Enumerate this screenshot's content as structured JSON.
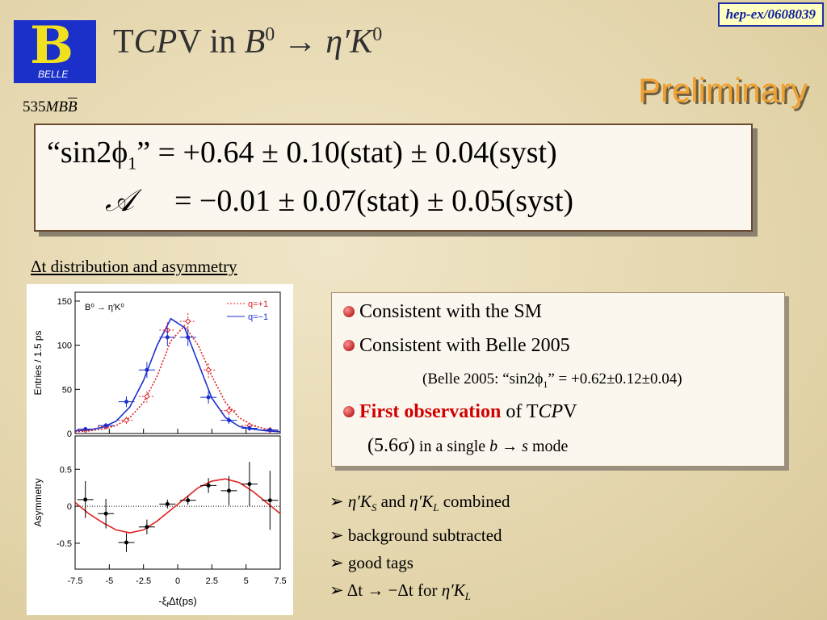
{
  "header": {
    "ref": "hep-ex/0608039",
    "logo_text": "BELLE",
    "title": [
      "T",
      "CP",
      "V in ",
      "B",
      "0",
      " → ",
      "η′",
      "K",
      "0"
    ],
    "luminosity": [
      "535",
      "MB",
      "B"
    ],
    "preliminary": "Preliminary"
  },
  "results": {
    "line1": [
      "“sin2",
      "ϕ",
      "1",
      "” = +0.64 ± 0.10(stat) ± 0.04(syst)"
    ],
    "line2": [
      "𝒜",
      "= −0.01 ± 0.07(stat) ± 0.05(syst)"
    ]
  },
  "section_label": "Δt distribution and asymmetry",
  "chart_data": [
    {
      "type": "errorbar",
      "ylabel": "Entries / 1.5 ps",
      "annotation": "B⁰ → η′K⁰",
      "xlim": [
        -7.5,
        7.5
      ],
      "xticks": [
        -7.5,
        -5,
        -2.5,
        0,
        2.5,
        5,
        7.5
      ],
      "xtick_labels": false,
      "ylim": [
        0,
        160
      ],
      "yticks": [
        0,
        50,
        100,
        150
      ],
      "legend": "top-right",
      "series": [
        {
          "name": "q=+1",
          "color": "#e02020",
          "style": "dotted",
          "x": [
            -6.75,
            -5.25,
            -3.75,
            -2.25,
            -0.75,
            0.75,
            2.25,
            3.75,
            5.25,
            6.75
          ],
          "values": [
            4,
            8,
            15,
            42,
            117,
            127,
            72,
            26,
            9,
            4
          ],
          "errors": [
            2,
            3,
            4,
            7,
            11,
            11,
            9,
            5,
            3,
            2
          ]
        },
        {
          "name": "q=−1",
          "color": "#1a2fd0",
          "style": "solid",
          "x": [
            -6.75,
            -5.25,
            -3.75,
            -2.25,
            -0.75,
            0.75,
            2.25,
            3.75,
            5.25,
            6.75
          ],
          "values": [
            5,
            9,
            36,
            72,
            109,
            109,
            41,
            15,
            6,
            4
          ],
          "errors": [
            2,
            3,
            6,
            9,
            10,
            10,
            7,
            4,
            3,
            2
          ]
        }
      ],
      "fits": [
        {
          "color": "#e02020",
          "style": "dotted",
          "x": [
            -7.5,
            -6.5,
            -5.5,
            -4.5,
            -3.5,
            -2.5,
            -1.5,
            -0.5,
            0.5,
            1.5,
            2.5,
            3.5,
            4.5,
            5.5,
            6.5,
            7.5
          ],
          "values": [
            2,
            3,
            5,
            9,
            18,
            35,
            65,
            105,
            122,
            100,
            65,
            35,
            18,
            9,
            5,
            3
          ]
        },
        {
          "color": "#1a2fd0",
          "style": "solid",
          "x": [
            -7.5,
            -6.5,
            -5.5,
            -4.5,
            -3.5,
            -2.5,
            -1.5,
            -0.5,
            0.5,
            1.5,
            2.5,
            3.5,
            4.5,
            5.5,
            6.5,
            7.5
          ],
          "values": [
            3,
            4,
            7,
            14,
            30,
            60,
            100,
            130,
            120,
            80,
            40,
            18,
            8,
            5,
            3,
            2
          ]
        }
      ]
    },
    {
      "type": "errorbar",
      "ylabel": "Asymmetry",
      "xlabel": [
        "-ξ",
        "f",
        "Δt(ps)"
      ],
      "xlim": [
        -7.5,
        7.5
      ],
      "xticks": [
        -7.5,
        -5,
        -2.5,
        0,
        2.5,
        5,
        7.5
      ],
      "xtick_labels": true,
      "ylim": [
        -0.85,
        0.95
      ],
      "yticks": [
        -0.5,
        0,
        0.5
      ],
      "zero_line": true,
      "series": [
        {
          "color": "#000000",
          "style": "solid",
          "x": [
            -6.75,
            -5.25,
            -3.75,
            -2.25,
            -0.75,
            0.75,
            2.25,
            3.75,
            5.25,
            6.75
          ],
          "values": [
            0.09,
            -0.1,
            -0.49,
            -0.28,
            0.03,
            0.08,
            0.28,
            0.21,
            0.3,
            0.08
          ],
          "errors": [
            0.25,
            0.2,
            0.13,
            0.1,
            0.06,
            0.06,
            0.1,
            0.2,
            0.3,
            0.4
          ]
        }
      ],
      "fits": [
        {
          "color": "#e02020",
          "style": "solid",
          "x": [
            -7.5,
            -6.5,
            -5.5,
            -4.5,
            -3.5,
            -2.5,
            -1.5,
            -0.5,
            0.5,
            1.5,
            2.5,
            3.5,
            4.5,
            5.5,
            6.5,
            7.5
          ],
          "values": [
            0.05,
            -0.1,
            -0.22,
            -0.32,
            -0.36,
            -0.32,
            -0.2,
            -0.05,
            0.1,
            0.25,
            0.34,
            0.37,
            0.32,
            0.2,
            0.05,
            -0.1
          ]
        }
      ]
    }
  ],
  "summary": {
    "b1": "Consistent with the SM",
    "b2": "Consistent with Belle 2005",
    "b2note": [
      "(Belle 2005: “sin2",
      "ϕ",
      "1",
      "” = +0.62±0.12±0.04)"
    ],
    "b3": [
      "First observation",
      " of T",
      "CP",
      "V"
    ],
    "b3note": [
      "(5.6σ)",
      " in a single ",
      "b",
      " → ",
      "s",
      " mode"
    ]
  },
  "notes": [
    [
      "η′K",
      "S",
      " and ",
      "η′K",
      "L",
      " combined"
    ],
    [
      "background subtracted"
    ],
    [
      "good tags"
    ],
    [
      "Δt → −Δt for ",
      "η′K",
      "L"
    ]
  ]
}
